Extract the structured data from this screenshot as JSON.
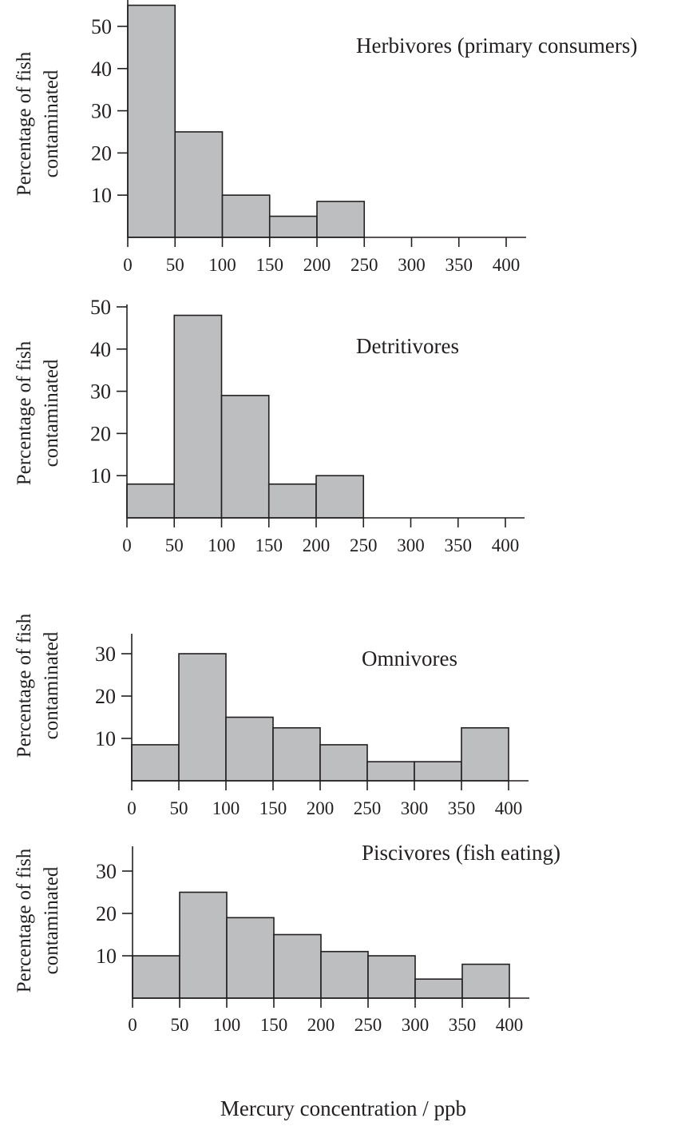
{
  "figure": {
    "xlabel": "Mercury concentration / ppb",
    "bar_color": "#bcbec0",
    "line_color": "#231f20"
  },
  "chart_data": [
    {
      "type": "bar",
      "title": "Herbivores (primary consumers)",
      "ylabel": "Percentage of fish contaminated",
      "ylabel_lines": [
        "Percentage of fish",
        "contaminated"
      ],
      "x_ticks": [
        "0",
        "50",
        "100",
        "150",
        "200",
        "250",
        "300",
        "350",
        "400"
      ],
      "y_ticks": [
        "10",
        "20",
        "30",
        "40",
        "50"
      ],
      "bins": [
        [
          0,
          50
        ],
        [
          50,
          100
        ],
        [
          100,
          150
        ],
        [
          150,
          200
        ],
        [
          200,
          250
        ]
      ],
      "values": [
        55,
        25,
        10,
        5,
        8.5
      ],
      "xlim": [
        0,
        400
      ],
      "ylim": [
        0,
        55
      ]
    },
    {
      "type": "bar",
      "title": "Detritivores",
      "ylabel": "Percentage of fish contaminated",
      "ylabel_lines": [
        "Percentage of fish",
        "contaminated"
      ],
      "x_ticks": [
        "0",
        "50",
        "100",
        "150",
        "200",
        "250",
        "300",
        "350",
        "400"
      ],
      "y_ticks": [
        "10",
        "20",
        "30",
        "40",
        "50"
      ],
      "bins": [
        [
          0,
          50
        ],
        [
          50,
          100
        ],
        [
          100,
          150
        ],
        [
          150,
          200
        ],
        [
          200,
          250
        ]
      ],
      "values": [
        8,
        48,
        29,
        8,
        10
      ],
      "xlim": [
        0,
        400
      ],
      "ylim": [
        0,
        50
      ]
    },
    {
      "type": "bar",
      "title": "Omnivores",
      "ylabel": "Percentage of fish contaminated",
      "ylabel_lines": [
        "Percentage of fish",
        "contaminated"
      ],
      "x_ticks": [
        "0",
        "50",
        "100",
        "150",
        "200",
        "250",
        "300",
        "350",
        "400"
      ],
      "y_ticks": [
        "10",
        "20",
        "30"
      ],
      "bins": [
        [
          0,
          50
        ],
        [
          50,
          100
        ],
        [
          100,
          150
        ],
        [
          150,
          200
        ],
        [
          200,
          250
        ],
        [
          250,
          300
        ],
        [
          300,
          350
        ],
        [
          350,
          400
        ]
      ],
      "values": [
        8.5,
        30,
        15,
        12.5,
        8.5,
        4.5,
        4.5,
        12.5
      ],
      "xlim": [
        0,
        400
      ],
      "ylim": [
        0,
        35
      ]
    },
    {
      "type": "bar",
      "title": "Piscivores (fish eating)",
      "ylabel": "Percentage of fish contaminated",
      "ylabel_lines": [
        "Percentage of fish",
        "contaminated"
      ],
      "x_ticks": [
        "0",
        "50",
        "100",
        "150",
        "200",
        "250",
        "300",
        "350",
        "400"
      ],
      "y_ticks": [
        "10",
        "20",
        "30"
      ],
      "bins": [
        [
          0,
          50
        ],
        [
          50,
          100
        ],
        [
          100,
          150
        ],
        [
          150,
          200
        ],
        [
          200,
          250
        ],
        [
          250,
          300
        ],
        [
          300,
          350
        ],
        [
          350,
          400
        ]
      ],
      "values": [
        10,
        25,
        19,
        15,
        11,
        10,
        4.5,
        8
      ],
      "xlim": [
        0,
        400
      ],
      "ylim": [
        0,
        35
      ]
    }
  ]
}
